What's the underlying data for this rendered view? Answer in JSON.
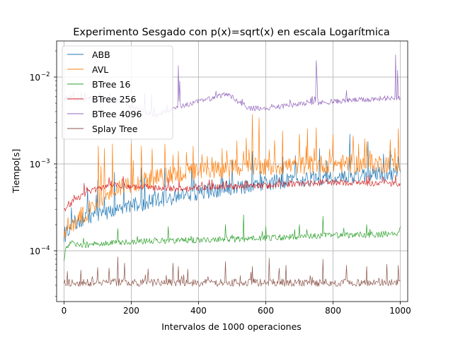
{
  "chart_data": {
    "type": "line",
    "title": "Experimento Sesgado con p(x)=sqrt(x) en escala Logarítmica",
    "xlabel": "Intervalos de 1000 operaciones",
    "ylabel": "Tiempo[s]",
    "xlim": [
      -22,
      1022
    ],
    "ylim": [
      2.6e-05,
      0.026
    ],
    "yscale": "log",
    "grid": true,
    "legend_position": "top-left",
    "x_ticks": [
      0,
      200,
      400,
      600,
      800,
      1000
    ],
    "x_tick_labels": [
      "0",
      "200",
      "400",
      "600",
      "800",
      "1000"
    ],
    "y_ticks": [
      0.0001,
      0.001,
      0.01
    ],
    "y_tick_labels": [
      "10",
      "10",
      "10"
    ],
    "y_tick_exponents": [
      "−4",
      "−3",
      "−2"
    ],
    "series": [
      {
        "name": "ABB",
        "color": "#1f77b4",
        "x": [
          0,
          10,
          25,
          50,
          75,
          100,
          125,
          150,
          175,
          200,
          250,
          300,
          350,
          400,
          450,
          500,
          550,
          600,
          650,
          700,
          750,
          800,
          850,
          900,
          950,
          1000
        ],
        "y": [
          0.000115,
          0.000165,
          0.0002,
          0.00023,
          0.00025,
          0.00026,
          0.00028,
          0.0003,
          0.00031,
          0.00033,
          0.00036,
          0.0004,
          0.00043,
          0.00047,
          0.0005,
          0.00053,
          0.00056,
          0.0006,
          0.00063,
          0.00066,
          0.00069,
          0.00071,
          0.00073,
          0.00075,
          0.00076,
          0.00078
        ],
        "spikes": [
          [
            100,
            0.00065
          ],
          [
            150,
            0.0008
          ],
          [
            230,
            0.0009
          ],
          [
            300,
            0.0009
          ],
          [
            380,
            0.001
          ],
          [
            500,
            0.0011
          ],
          [
            560,
            0.0014
          ],
          [
            650,
            0.0012
          ],
          [
            760,
            0.0015
          ],
          [
            850,
            0.0022
          ],
          [
            905,
            0.0018
          ],
          [
            950,
            0.0013
          ]
        ]
      },
      {
        "name": "AVL",
        "color": "#ff7f0e",
        "x": [
          0,
          10,
          25,
          50,
          75,
          100,
          125,
          150,
          175,
          200,
          250,
          300,
          350,
          400,
          450,
          500,
          550,
          600,
          650,
          700,
          750,
          800,
          850,
          900,
          950,
          1000
        ],
        "y": [
          0.000135,
          0.000175,
          0.000205,
          0.00025,
          0.0003,
          0.00037,
          0.00043,
          0.0005,
          0.00056,
          0.0006,
          0.00065,
          0.00072,
          0.00078,
          0.00082,
          0.00085,
          0.00088,
          0.0009,
          0.00092,
          0.00095,
          0.00097,
          0.00098,
          0.001,
          0.001,
          0.001,
          0.00101,
          0.00102
        ],
        "spikes": [
          [
            102,
            0.0016
          ],
          [
            120,
            0.0015
          ],
          [
            145,
            0.0017
          ],
          [
            200,
            0.0017
          ],
          [
            230,
            0.0016
          ],
          [
            300,
            0.0017
          ],
          [
            340,
            0.0014
          ],
          [
            385,
            0.0016
          ],
          [
            470,
            0.0015
          ],
          [
            535,
            0.0014
          ],
          [
            560,
            0.0037
          ],
          [
            580,
            0.0034
          ],
          [
            650,
            0.0024
          ],
          [
            700,
            0.0022
          ],
          [
            750,
            0.0026
          ],
          [
            800,
            0.0022
          ],
          [
            860,
            0.0021
          ],
          [
            900,
            0.0018
          ],
          [
            970,
            0.0019
          ]
        ]
      },
      {
        "name": "BTree 16",
        "color": "#2ca02c",
        "x": [
          0,
          5,
          20,
          50,
          100,
          150,
          200,
          300,
          400,
          500,
          600,
          700,
          800,
          900,
          1000
        ],
        "y": [
          7.5e-05,
          0.000105,
          0.00012,
          0.000115,
          0.00012,
          0.000125,
          0.000128,
          0.00013,
          0.000133,
          0.000135,
          0.00014,
          0.000145,
          0.00015,
          0.000152,
          0.000158
        ],
        "spikes": [
          [
            160,
            0.00018
          ],
          [
            310,
            0.00019
          ],
          [
            480,
            0.0002
          ],
          [
            535,
            0.00026
          ],
          [
            600,
            0.00019
          ],
          [
            700,
            0.0002
          ],
          [
            770,
            0.00025
          ],
          [
            900,
            0.0002
          ],
          [
            1000,
            0.00019
          ]
        ]
      },
      {
        "name": "BTree 256",
        "color": "#d62728",
        "x": [
          0,
          10,
          25,
          50,
          75,
          100,
          130,
          150,
          200,
          250,
          300,
          350,
          400,
          450,
          500,
          550,
          600,
          650,
          700,
          750,
          800,
          850,
          900,
          950,
          1000
        ],
        "y": [
          0.0003,
          0.00032,
          0.00036,
          0.00042,
          0.00048,
          0.00052,
          0.00055,
          0.00057,
          0.00055,
          0.00053,
          0.00052,
          0.00052,
          0.00053,
          0.00054,
          0.00054,
          0.00055,
          0.00056,
          0.00058,
          0.00059,
          0.0006,
          0.00061,
          0.00061,
          0.0006,
          0.00059,
          0.00059
        ],
        "spikes": [
          [
            135,
            0.0007
          ],
          [
            240,
            0.0006
          ],
          [
            410,
            0.00062
          ],
          [
            640,
            0.00068
          ],
          [
            780,
            0.00068
          ],
          [
            900,
            0.00072
          ]
        ]
      },
      {
        "name": "BTree 4096",
        "color": "#9467bd",
        "x": [
          0,
          30,
          60,
          100,
          150,
          175,
          200,
          230,
          250,
          275,
          300,
          350,
          400,
          450,
          480,
          500,
          530,
          550,
          600,
          650,
          700,
          750,
          800,
          850,
          900,
          950,
          1000
        ],
        "y": [
          0.0055,
          0.0055,
          0.0055,
          0.0055,
          0.0055,
          0.0052,
          0.0045,
          0.0042,
          0.0038,
          0.0036,
          0.004,
          0.0046,
          0.0052,
          0.0058,
          0.0064,
          0.0058,
          0.0049,
          0.0044,
          0.0043,
          0.0046,
          0.0049,
          0.005,
          0.0052,
          0.0054,
          0.0055,
          0.0057,
          0.0058
        ],
        "spikes": [
          [
            340,
            0.0135
          ],
          [
            345,
            0.009
          ],
          [
            750,
            0.0155
          ],
          [
            753,
            0.011
          ],
          [
            987,
            0.018
          ],
          [
            992,
            0.012
          ],
          [
            240,
            0.0065
          ],
          [
            260,
            0.0062
          ],
          [
            840,
            0.007
          ]
        ]
      },
      {
        "name": "Splay Tree",
        "color": "#8c564b",
        "x": [
          0,
          100,
          200,
          300,
          400,
          500,
          600,
          700,
          800,
          900,
          1000
        ],
        "y": [
          4.3e-05,
          4.3e-05,
          4.3e-05,
          4.3e-05,
          4.3e-05,
          4.3e-05,
          4.3e-05,
          4.3e-05,
          4.3e-05,
          4.3e-05,
          4.3e-05
        ],
        "spikes": [
          [
            10,
            5.8e-05
          ],
          [
            50,
            6e-05
          ],
          [
            100,
            6.4e-05
          ],
          [
            160,
            8.5e-05
          ],
          [
            180,
            7.2e-05
          ],
          [
            250,
            6.2e-05
          ],
          [
            325,
            7.2e-05
          ],
          [
            340,
            6.6e-05
          ],
          [
            480,
            7.5e-05
          ],
          [
            560,
            6.6e-05
          ],
          [
            610,
            8.2e-05
          ],
          [
            640,
            6.3e-05
          ],
          [
            660,
            6.8e-05
          ],
          [
            770,
            8e-05
          ],
          [
            840,
            6.8e-05
          ],
          [
            900,
            6.6e-05
          ],
          [
            960,
            7e-05
          ],
          [
            995,
            6.8e-05
          ]
        ]
      }
    ]
  }
}
